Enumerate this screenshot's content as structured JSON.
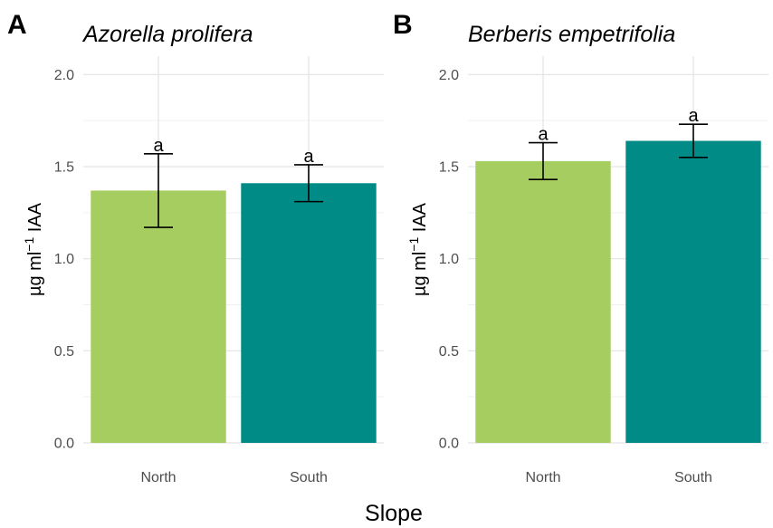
{
  "chart_data": [
    {
      "type": "bar",
      "panel_label": "A",
      "title": "Azorella prolifera",
      "categories": [
        "North",
        "South"
      ],
      "values": [
        1.37,
        1.41
      ],
      "error_low": [
        1.17,
        1.31
      ],
      "error_high": [
        1.57,
        1.51
      ],
      "annotations": [
        "a",
        "a"
      ],
      "colors": [
        "#a5cd5f",
        "#008b86"
      ],
      "ylim": [
        0,
        2.1
      ],
      "yticks": [
        0.0,
        0.5,
        1.0,
        1.5,
        2.0
      ],
      "ytick_labels": [
        "0.0",
        "0.5",
        "1.0",
        "1.5",
        "2.0"
      ],
      "ylabel": {
        "base": "µg ml",
        "sup": "−1",
        "unit": " IAA"
      },
      "grid": true
    },
    {
      "type": "bar",
      "panel_label": "B",
      "title": "Berberis empetrifolia",
      "categories": [
        "North",
        "South"
      ],
      "values": [
        1.53,
        1.64
      ],
      "error_low": [
        1.43,
        1.55
      ],
      "error_high": [
        1.63,
        1.73
      ],
      "annotations": [
        "a",
        "a"
      ],
      "colors": [
        "#a5cd5f",
        "#008b86"
      ],
      "ylim": [
        0,
        2.1
      ],
      "yticks": [
        0.0,
        0.5,
        1.0,
        1.5,
        2.0
      ],
      "ytick_labels": [
        "0.0",
        "0.5",
        "1.0",
        "1.5",
        "2.0"
      ],
      "ylabel": {
        "base": "µg ml",
        "sup": "−1",
        "unit": " IAA"
      },
      "grid": true
    }
  ],
  "xlabel": "Slope"
}
